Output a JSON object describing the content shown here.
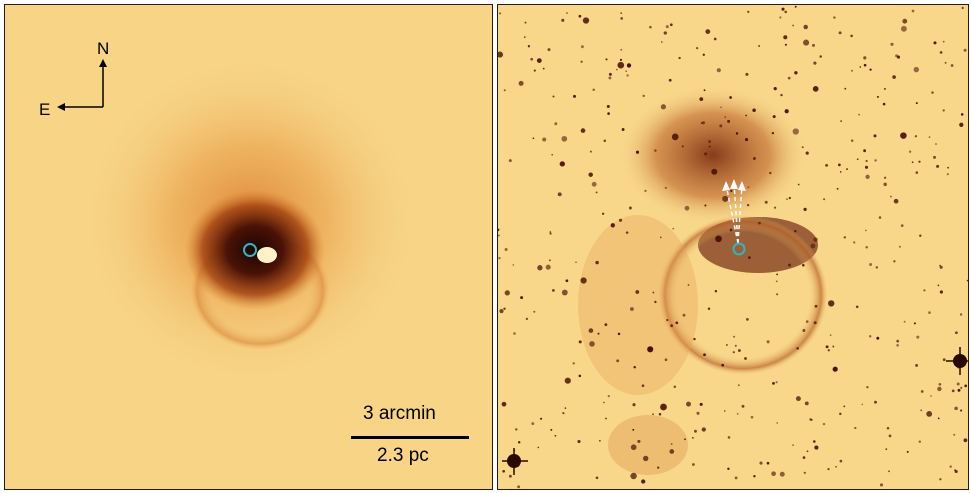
{
  "figure": {
    "left_panel": {
      "compass": {
        "north": "N",
        "east": "E"
      },
      "scale_bar": {
        "angular": "3 arcmin",
        "physical": "2.3 pc"
      }
    },
    "right_panel": {
      "arrows": 3
    },
    "colors": {
      "background": "#f8d78a",
      "nebula_dark": "#3a0d05",
      "nebula_mid": "#c0561a",
      "marker": "#2bb7c8",
      "arrow": "#ffffff"
    }
  }
}
